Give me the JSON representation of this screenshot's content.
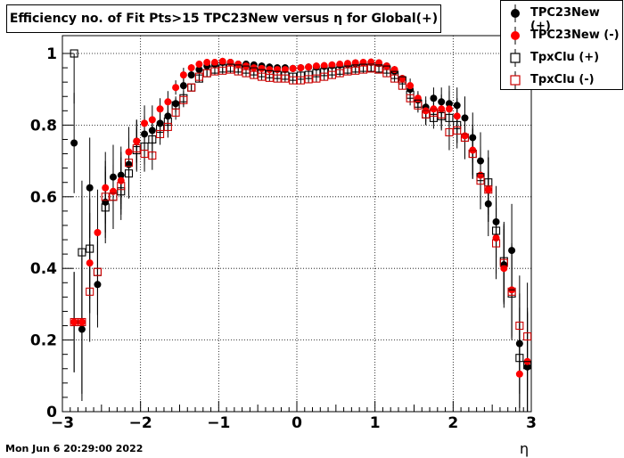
{
  "title": "Efficiency no. of Fit Pts>15 TPC23New versus η for Global(+)",
  "timestamp": "Mon Jun  6 20:29:00 2022",
  "chart_data": {
    "type": "scatter",
    "title": "Efficiency no. of Fit Pts>15 TPC23New versus η for Global(+)",
    "xlabel": "η",
    "ylabel": "",
    "xlim": [
      -3,
      3
    ],
    "ylim": [
      0,
      1.0
    ],
    "grid": true,
    "legend_position": "top-right",
    "x_ticks": [
      "−3",
      "−2",
      "−1",
      "0",
      "1",
      "2",
      "3"
    ],
    "y_ticks": [
      "0",
      "0.2",
      "0.4",
      "0.6",
      "0.8",
      "1"
    ],
    "x": [
      -2.85,
      -2.75,
      -2.65,
      -2.55,
      -2.45,
      -2.35,
      -2.25,
      -2.15,
      -2.05,
      -1.95,
      -1.85,
      -1.75,
      -1.65,
      -1.55,
      -1.45,
      -1.35,
      -1.25,
      -1.15,
      -1.05,
      -0.95,
      -0.85,
      -0.75,
      -0.65,
      -0.55,
      -0.45,
      -0.35,
      -0.25,
      -0.15,
      -0.05,
      0.05,
      0.15,
      0.25,
      0.35,
      0.45,
      0.55,
      0.65,
      0.75,
      0.85,
      0.95,
      1.05,
      1.15,
      1.25,
      1.35,
      1.45,
      1.55,
      1.65,
      1.75,
      1.85,
      1.95,
      2.05,
      2.15,
      2.25,
      2.35,
      2.45,
      2.55,
      2.65,
      2.75,
      2.85,
      2.95
    ],
    "series": [
      {
        "name": "TPC23New (+)",
        "marker": "filled-circle",
        "color": "#000000",
        "values": [
          0.75,
          0.23,
          0.625,
          0.355,
          0.585,
          0.655,
          0.66,
          0.69,
          0.755,
          0.775,
          0.785,
          0.805,
          0.825,
          0.86,
          0.91,
          0.94,
          0.955,
          0.965,
          0.97,
          0.975,
          0.975,
          0.97,
          0.97,
          0.968,
          0.965,
          0.962,
          0.96,
          0.96,
          0.958,
          0.96,
          0.962,
          0.962,
          0.964,
          0.966,
          0.968,
          0.97,
          0.972,
          0.974,
          0.975,
          0.972,
          0.965,
          0.95,
          0.93,
          0.9,
          0.87,
          0.85,
          0.875,
          0.865,
          0.86,
          0.855,
          0.82,
          0.765,
          0.7,
          0.58,
          0.53,
          0.41,
          0.45,
          0.19,
          0.125
        ],
        "errors": [
          0.14,
          0.2,
          0.14,
          0.12,
          0.1,
          0.09,
          0.08,
          0.07,
          0.06,
          0.05,
          0.04,
          0.03,
          0.03,
          0.02,
          0.02,
          0.01,
          0.01,
          0.01,
          0.01,
          0.01,
          0.01,
          0.01,
          0.01,
          0.01,
          0.01,
          0.01,
          0.01,
          0.01,
          0.01,
          0.01,
          0.01,
          0.01,
          0.01,
          0.01,
          0.01,
          0.01,
          0.01,
          0.01,
          0.01,
          0.01,
          0.01,
          0.01,
          0.01,
          0.02,
          0.02,
          0.03,
          0.03,
          0.04,
          0.05,
          0.05,
          0.06,
          0.07,
          0.08,
          0.09,
          0.1,
          0.11,
          0.13,
          0.14,
          0.15
        ]
      },
      {
        "name": "TPC23New (-)",
        "marker": "filled-circle",
        "color": "#ff0000",
        "values": [
          0.25,
          0.25,
          0.415,
          0.5,
          0.625,
          0.615,
          0.645,
          0.725,
          0.755,
          0.805,
          0.815,
          0.845,
          0.865,
          0.905,
          0.94,
          0.96,
          0.97,
          0.975,
          0.975,
          0.978,
          0.975,
          0.97,
          0.965,
          0.96,
          0.958,
          0.955,
          0.955,
          0.955,
          0.958,
          0.96,
          0.962,
          0.965,
          0.966,
          0.968,
          0.97,
          0.972,
          0.974,
          0.975,
          0.976,
          0.974,
          0.965,
          0.955,
          0.93,
          0.91,
          0.875,
          0.84,
          0.845,
          0.845,
          0.845,
          0.825,
          0.77,
          0.73,
          0.66,
          0.62,
          0.485,
          0.4,
          0.34,
          0.105,
          0.14
        ],
        "errors": [
          0.14,
          0.2,
          0.14,
          0.12,
          0.1,
          0.09,
          0.08,
          0.07,
          0.06,
          0.05,
          0.04,
          0.03,
          0.03,
          0.02,
          0.02,
          0.01,
          0.01,
          0.01,
          0.01,
          0.01,
          0.01,
          0.01,
          0.01,
          0.01,
          0.01,
          0.01,
          0.01,
          0.01,
          0.01,
          0.01,
          0.01,
          0.01,
          0.01,
          0.01,
          0.01,
          0.01,
          0.01,
          0.01,
          0.01,
          0.01,
          0.01,
          0.01,
          0.01,
          0.02,
          0.02,
          0.03,
          0.03,
          0.04,
          0.05,
          0.05,
          0.06,
          0.07,
          0.08,
          0.09,
          0.1,
          0.11,
          0.13,
          0.14,
          0.15
        ]
      },
      {
        "name": "TpxClu (+)",
        "marker": "open-square",
        "color": "#000000",
        "values": [
          1.0,
          0.445,
          0.455,
          0.39,
          0.57,
          0.6,
          0.615,
          0.665,
          0.73,
          0.74,
          0.76,
          0.79,
          0.81,
          0.855,
          0.875,
          0.905,
          0.93,
          0.945,
          0.955,
          0.958,
          0.96,
          0.958,
          0.955,
          0.95,
          0.945,
          0.942,
          0.94,
          0.938,
          0.935,
          0.938,
          0.94,
          0.945,
          0.948,
          0.95,
          0.952,
          0.955,
          0.958,
          0.96,
          0.96,
          0.958,
          0.955,
          0.94,
          0.925,
          0.885,
          0.86,
          0.83,
          0.82,
          0.825,
          0.82,
          0.8,
          0.765,
          0.72,
          0.655,
          0.64,
          0.505,
          0.42,
          0.33,
          0.15,
          0.13
        ],
        "errors": [
          0.14,
          0.2,
          0.14,
          0.12,
          0.1,
          0.09,
          0.08,
          0.07,
          0.06,
          0.05,
          0.04,
          0.03,
          0.03,
          0.02,
          0.02,
          0.01,
          0.01,
          0.01,
          0.01,
          0.01,
          0.01,
          0.01,
          0.01,
          0.01,
          0.01,
          0.01,
          0.01,
          0.01,
          0.01,
          0.01,
          0.01,
          0.01,
          0.01,
          0.01,
          0.01,
          0.01,
          0.01,
          0.01,
          0.01,
          0.01,
          0.01,
          0.01,
          0.01,
          0.02,
          0.02,
          0.03,
          0.03,
          0.04,
          0.05,
          0.05,
          0.06,
          0.07,
          0.08,
          0.09,
          0.1,
          0.11,
          0.13,
          0.14,
          0.15
        ]
      },
      {
        "name": "TpxClu (-)",
        "marker": "open-square",
        "color": "#cc0000",
        "values": [
          0.25,
          0.25,
          0.335,
          0.39,
          0.6,
          0.6,
          0.63,
          0.695,
          0.735,
          0.72,
          0.715,
          0.775,
          0.795,
          0.835,
          0.87,
          0.905,
          0.935,
          0.945,
          0.95,
          0.952,
          0.955,
          0.95,
          0.945,
          0.94,
          0.935,
          0.932,
          0.93,
          0.93,
          0.925,
          0.925,
          0.928,
          0.93,
          0.935,
          0.94,
          0.945,
          0.95,
          0.952,
          0.955,
          0.958,
          0.955,
          0.945,
          0.93,
          0.91,
          0.875,
          0.855,
          0.83,
          0.835,
          0.83,
          0.78,
          0.785,
          0.765,
          0.72,
          0.645,
          0.62,
          0.47,
          0.415,
          0.335,
          0.24,
          0.21
        ],
        "errors": [
          0.14,
          0.2,
          0.14,
          0.12,
          0.1,
          0.09,
          0.08,
          0.07,
          0.06,
          0.05,
          0.04,
          0.03,
          0.03,
          0.02,
          0.02,
          0.01,
          0.01,
          0.01,
          0.01,
          0.01,
          0.01,
          0.01,
          0.01,
          0.01,
          0.01,
          0.01,
          0.01,
          0.01,
          0.01,
          0.01,
          0.01,
          0.01,
          0.01,
          0.01,
          0.01,
          0.01,
          0.01,
          0.01,
          0.01,
          0.01,
          0.01,
          0.01,
          0.01,
          0.02,
          0.02,
          0.03,
          0.03,
          0.04,
          0.05,
          0.05,
          0.06,
          0.07,
          0.08,
          0.09,
          0.1,
          0.11,
          0.13,
          0.14,
          0.15
        ]
      }
    ]
  }
}
